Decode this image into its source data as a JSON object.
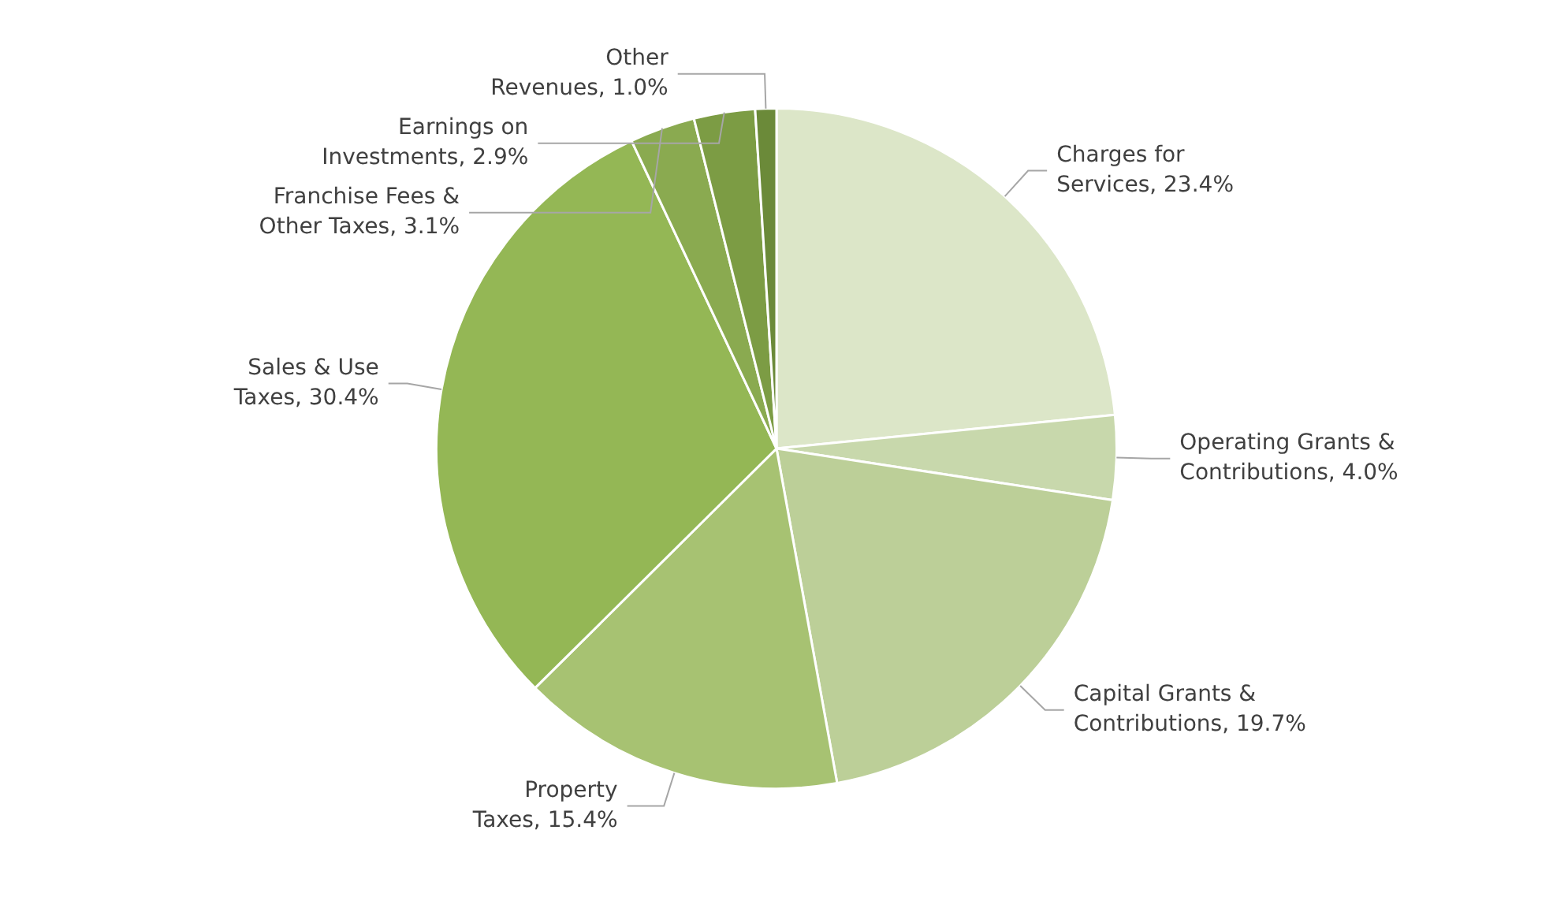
{
  "chart_data": {
    "type": "pie",
    "categories": [
      "Charges for Services",
      "Operating Grants & Contributions",
      "Capital Grants & Contributions",
      "Property Taxes",
      "Sales & Use Taxes",
      "Franchise Fees & Other Taxes",
      "Earnings on Investments",
      "Other Revenues"
    ],
    "value_labels": [
      ", 23.4%",
      ", 4.0%",
      ", 19.7%",
      ", 15.4%",
      ", 30.4%",
      ", 3.1%",
      ", 2.9%",
      ", 1.0%"
    ],
    "values": [
      23.4,
      4.0,
      19.7,
      15.4,
      30.4,
      3.1,
      2.9,
      1.0
    ],
    "colors": [
      "#dce6c8",
      "#c8d8ac",
      "#bccf98",
      "#a7c272",
      "#94b755",
      "#8aaa50",
      "#7c9c44",
      "#6b8a39"
    ],
    "legend": false
  }
}
